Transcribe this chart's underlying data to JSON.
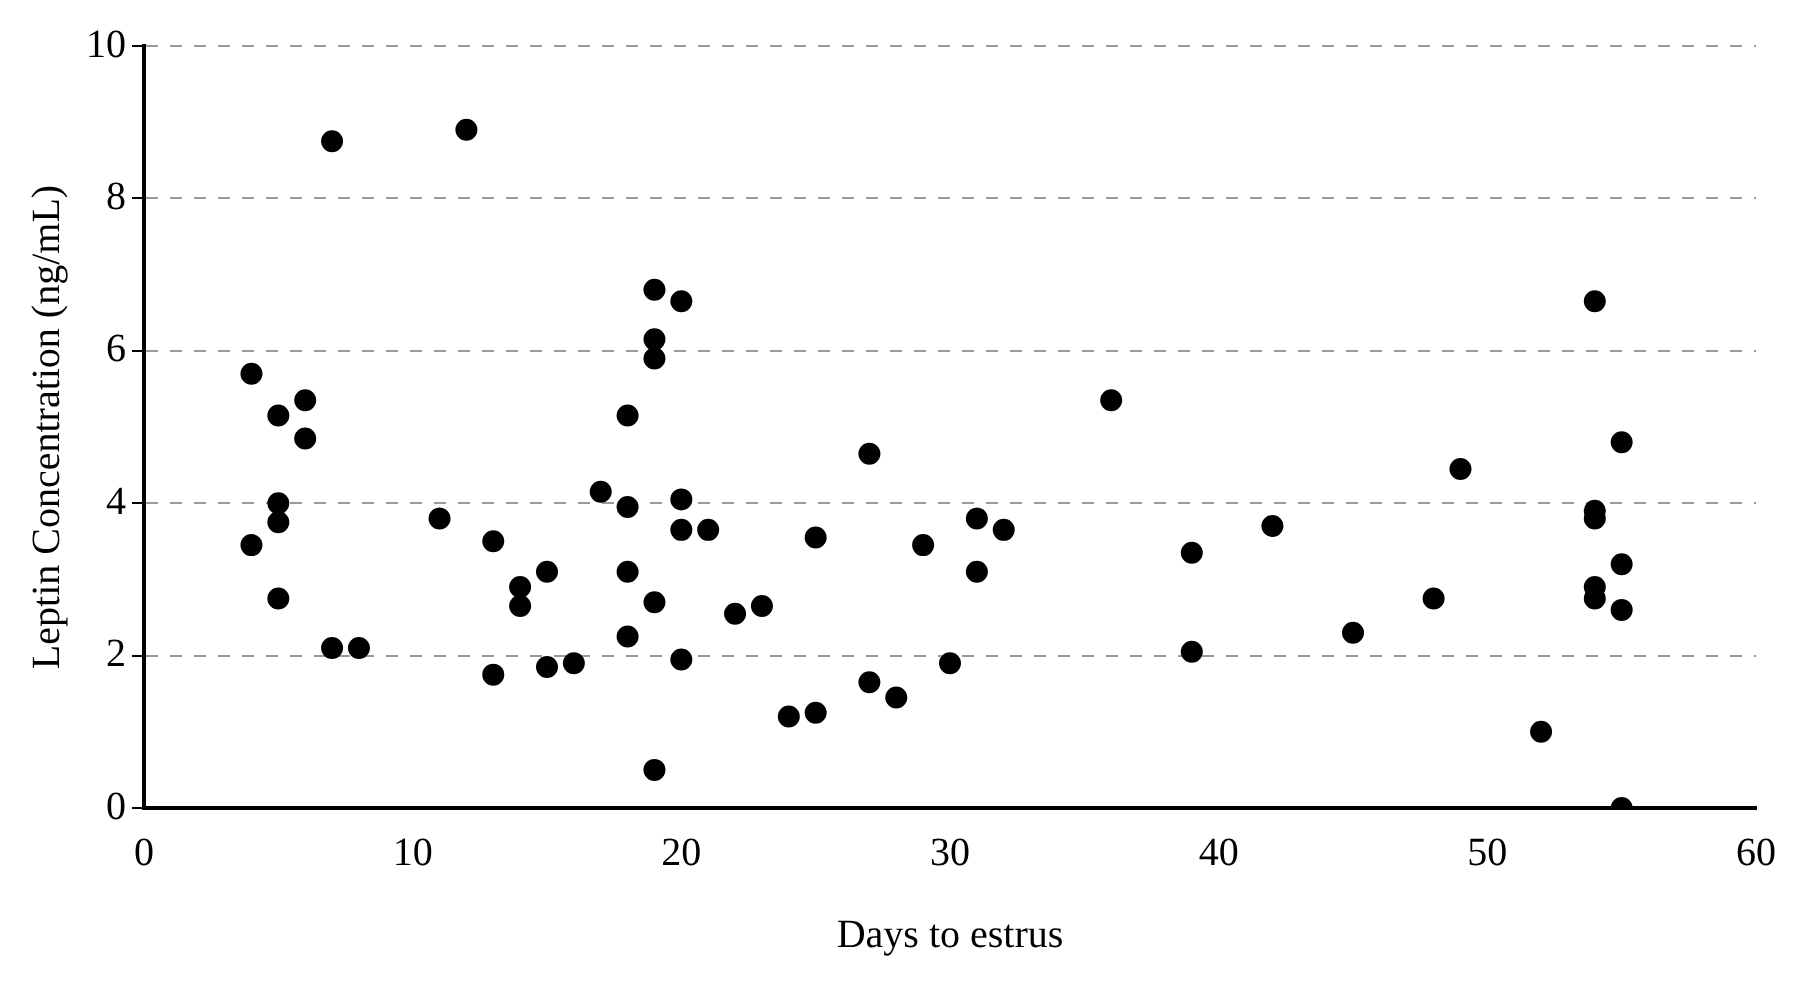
{
  "chart_data": {
    "type": "scatter",
    "xlabel": "Days to estrus",
    "ylabel": "Leptin Concentration (ng/mL)",
    "x": [
      4,
      4,
      5,
      5,
      5,
      5,
      6,
      6,
      7,
      7,
      8,
      11,
      12,
      13,
      13,
      14,
      14,
      15,
      15,
      16,
      17,
      18,
      18,
      18,
      18,
      19,
      19,
      19,
      19,
      19,
      20,
      20,
      20,
      20,
      21,
      22,
      23,
      24,
      25,
      25,
      27,
      27,
      28,
      29,
      30,
      31,
      31,
      32,
      36,
      39,
      39,
      42,
      45,
      48,
      49,
      52,
      54,
      54,
      54,
      54,
      54,
      55,
      55,
      55,
      55
    ],
    "values": [
      5.7,
      3.45,
      5.15,
      4.0,
      3.75,
      2.75,
      5.35,
      4.85,
      8.75,
      2.1,
      2.1,
      3.8,
      8.9,
      3.5,
      1.75,
      2.9,
      2.65,
      3.1,
      1.85,
      1.9,
      4.15,
      5.15,
      3.95,
      3.1,
      2.25,
      6.8,
      6.15,
      5.9,
      2.7,
      0.5,
      6.65,
      4.05,
      3.65,
      1.95,
      3.65,
      2.55,
      2.65,
      1.2,
      3.55,
      1.25,
      4.65,
      1.65,
      1.45,
      3.45,
      1.9,
      3.8,
      3.1,
      3.65,
      5.35,
      3.35,
      2.05,
      3.7,
      2.3,
      2.75,
      4.45,
      1.0,
      6.65,
      3.9,
      3.8,
      2.9,
      2.75,
      4.8,
      3.2,
      2.6,
      0.0
    ],
    "color": "#000000",
    "marker": "circle",
    "xlim": [
      0,
      60
    ],
    "xticks": [
      0,
      10,
      20,
      30,
      40,
      50,
      60
    ],
    "ylim": [
      0,
      10
    ],
    "yticks": [
      0,
      2,
      4,
      6,
      8,
      10
    ],
    "grid": "y",
    "line_style": "dashed"
  }
}
